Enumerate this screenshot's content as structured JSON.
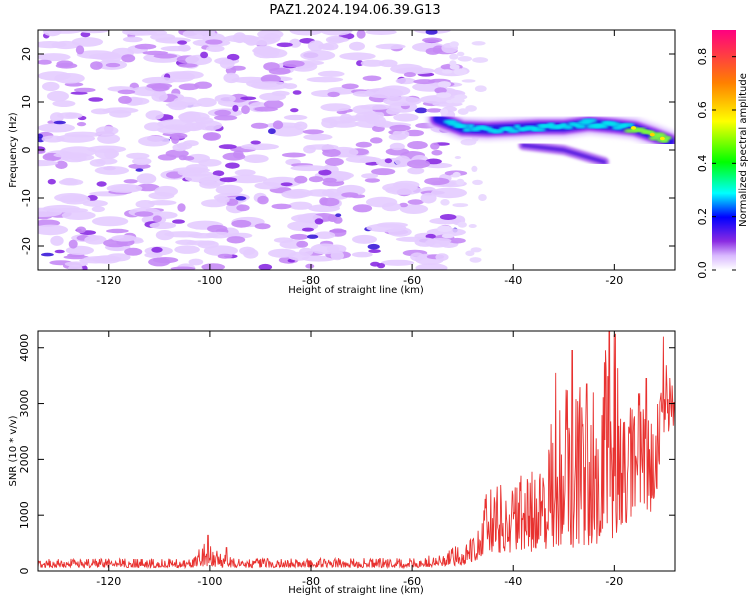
{
  "figure": {
    "title": "PAZ1.2024.194.06.39.G13"
  },
  "chart_data": [
    {
      "type": "heatmap",
      "title": "PAZ1.2024.194.06.39.G13",
      "xlabel": "Height of straight line (km)",
      "ylabel": "Frequency (Hz)",
      "xlim": [
        -134,
        -8
      ],
      "ylim": [
        -25,
        25
      ],
      "x_ticks": [
        -120,
        -100,
        -80,
        -60,
        -40,
        -20
      ],
      "y_ticks": [
        -20,
        -10,
        0,
        10,
        20
      ],
      "x_tick_labels": [
        "-120",
        "-100",
        "-80",
        "-60",
        "-40",
        "-20"
      ],
      "y_tick_labels": [
        "-20",
        "-10",
        "0",
        "10",
        "20"
      ],
      "colorbar": {
        "label": "Normalized spectral amplitude",
        "range": [
          0.0,
          0.9
        ],
        "ticks": [
          0.0,
          0.2,
          0.4,
          0.6,
          0.8
        ],
        "tick_labels": [
          "0.0",
          "0.2",
          "0.4",
          "0.6",
          "0.8"
        ],
        "colormap": [
          "#ffffff",
          "#a020f0",
          "#0000ff",
          "#00ffff",
          "#00ff00",
          "#ffff00",
          "#ff8000",
          "#ff0080"
        ]
      },
      "noise_region": {
        "x_range": [
          -134,
          -52
        ],
        "amplitude": 0.05
      },
      "signal_track": [
        {
          "x": -55,
          "freq": 6.5,
          "amp": 0.15
        },
        {
          "x": -50,
          "freq": 4.5,
          "amp": 0.25
        },
        {
          "x": -45,
          "freq": 4.3,
          "amp": 0.28
        },
        {
          "x": -40,
          "freq": 4.5,
          "amp": 0.3
        },
        {
          "x": -35,
          "freq": 4.8,
          "amp": 0.3
        },
        {
          "x": -30,
          "freq": 4.8,
          "amp": 0.32
        },
        {
          "x": -25,
          "freq": 5.5,
          "amp": 0.35
        },
        {
          "x": -20,
          "freq": 5.0,
          "amp": 0.35
        },
        {
          "x": -16,
          "freq": 4.5,
          "amp": 0.55
        },
        {
          "x": -12,
          "freq": 3.0,
          "amp": 0.6
        },
        {
          "x": -9,
          "freq": 1.8,
          "amp": 0.55
        }
      ],
      "signal_branch": [
        {
          "x": -38,
          "freq": 1.0,
          "amp": 0.12
        },
        {
          "x": -30,
          "freq": 0.0,
          "amp": 0.12
        },
        {
          "x": -22,
          "freq": -2.5,
          "amp": 0.12
        }
      ]
    },
    {
      "type": "line",
      "xlabel": "Height of straight line (km)",
      "ylabel": "SNR (10 * v/v)",
      "xlim": [
        -134,
        -8
      ],
      "ylim": [
        0,
        4300
      ],
      "x_ticks": [
        -120,
        -100,
        -80,
        -60,
        -40,
        -20
      ],
      "y_ticks": [
        0,
        1000,
        2000,
        3000,
        4000
      ],
      "x_tick_labels": [
        "-120",
        "-100",
        "-80",
        "-60",
        "-40",
        "-20"
      ],
      "y_tick_labels": [
        "0",
        "1000",
        "2000",
        "3000",
        "4000"
      ],
      "color": "#e8312f",
      "envelope": {
        "x": [
          -134,
          -104,
          -101,
          -98,
          -95,
          -60,
          -55,
          -50,
          -47,
          -45,
          -40,
          -35,
          -32,
          -30,
          -28,
          -25,
          -22,
          -20,
          -18,
          -15,
          -12,
          -10,
          -8
        ],
        "upper": [
          220,
          220,
          520,
          380,
          230,
          230,
          300,
          500,
          900,
          1500,
          1600,
          2000,
          2800,
          3200,
          3600,
          3300,
          4000,
          4300,
          2800,
          3400,
          2600,
          4200,
          3000
        ],
        "lower": [
          60,
          60,
          80,
          70,
          60,
          60,
          70,
          100,
          200,
          350,
          300,
          350,
          400,
          500,
          400,
          450,
          500,
          600,
          800,
          1200,
          1000,
          2500,
          2400
        ]
      },
      "peaks": [
        {
          "x": -100.4,
          "y": 640
        },
        {
          "x": -96.7,
          "y": 420
        },
        {
          "x": -31.6,
          "y": 3550
        },
        {
          "x": -28.3,
          "y": 3950
        },
        {
          "x": -25.5,
          "y": 3350
        },
        {
          "x": -21.0,
          "y": 4300
        },
        {
          "x": -19.8,
          "y": 4250
        },
        {
          "x": -13.7,
          "y": 3450
        },
        {
          "x": -10.3,
          "y": 4200
        },
        {
          "x": -8.2,
          "y": 3020
        }
      ]
    }
  ]
}
